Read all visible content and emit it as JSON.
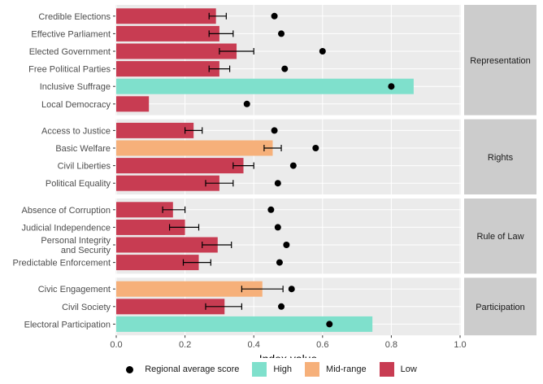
{
  "chart_data": {
    "type": "bar",
    "orientation": "horizontal",
    "xlabel": "Index value",
    "xlim": [
      0,
      1
    ],
    "x_ticks": [
      "0.0",
      "0.2",
      "0.4",
      "0.6",
      "0.8",
      "1.0"
    ],
    "colors": {
      "High": "#7fe0cc",
      "Mid-range": "#f6b07a",
      "Low": "#c83c52",
      "point": "#000000",
      "panel": "#ebebeb",
      "strip": "#cccccc"
    },
    "legend": {
      "point_label": "Regional average score",
      "categories": [
        {
          "name": "High",
          "color": "#7fe0cc"
        },
        {
          "name": "Mid-range",
          "color": "#f6b07a"
        },
        {
          "name": "Low",
          "color": "#c83c52"
        }
      ]
    },
    "facets": [
      {
        "name": "Representation",
        "rows": [
          {
            "label": "Credible Elections",
            "value": 0.29,
            "err": [
              0.27,
              0.32
            ],
            "regional": 0.46,
            "level": "Low"
          },
          {
            "label": "Effective Parliament",
            "value": 0.3,
            "err": [
              0.27,
              0.34
            ],
            "regional": 0.48,
            "level": "Low"
          },
          {
            "label": "Elected Government",
            "value": 0.35,
            "err": [
              0.3,
              0.4
            ],
            "regional": 0.6,
            "level": "Low"
          },
          {
            "label": "Free Political Parties",
            "value": 0.3,
            "err": [
              0.27,
              0.33
            ],
            "regional": 0.49,
            "level": "Low"
          },
          {
            "label": "Inclusive Suffrage",
            "value": 0.865,
            "err": null,
            "regional": 0.8,
            "level": "High"
          },
          {
            "label": "Local Democracy",
            "value": 0.095,
            "err": null,
            "regional": 0.38,
            "level": "Low"
          }
        ]
      },
      {
        "name": "Rights",
        "rows": [
          {
            "label": "Access to Justice",
            "value": 0.225,
            "err": [
              0.2,
              0.25
            ],
            "regional": 0.46,
            "level": "Low"
          },
          {
            "label": "Basic Welfare",
            "value": 0.455,
            "err": [
              0.43,
              0.48
            ],
            "regional": 0.58,
            "level": "Mid-range"
          },
          {
            "label": "Civil Liberties",
            "value": 0.37,
            "err": [
              0.34,
              0.4
            ],
            "regional": 0.515,
            "level": "Low"
          },
          {
            "label": "Political Equality",
            "value": 0.3,
            "err": [
              0.26,
              0.34
            ],
            "regional": 0.47,
            "level": "Low"
          }
        ]
      },
      {
        "name": "Rule of Law",
        "rows": [
          {
            "label": "Absence of Corruption",
            "value": 0.165,
            "err": [
              0.135,
              0.2
            ],
            "regional": 0.45,
            "level": "Low"
          },
          {
            "label": "Judicial Independence",
            "value": 0.2,
            "err": [
              0.155,
              0.24
            ],
            "regional": 0.47,
            "level": "Low"
          },
          {
            "label": "Personal Integrity and Security",
            "value": 0.295,
            "err": [
              0.25,
              0.335
            ],
            "regional": 0.495,
            "level": "Low"
          },
          {
            "label": "Predictable Enforcement",
            "value": 0.24,
            "err": [
              0.195,
              0.275
            ],
            "regional": 0.475,
            "level": "Low"
          }
        ]
      },
      {
        "name": "Participation",
        "rows": [
          {
            "label": "Civic Engagement",
            "value": 0.425,
            "err": [
              0.365,
              0.485
            ],
            "regional": 0.51,
            "level": "Mid-range"
          },
          {
            "label": "Civil Society",
            "value": 0.315,
            "err": [
              0.26,
              0.365
            ],
            "regional": 0.48,
            "level": "Low"
          },
          {
            "label": "Electoral Participation",
            "value": 0.745,
            "err": null,
            "regional": 0.62,
            "level": "High"
          }
        ]
      }
    ]
  }
}
